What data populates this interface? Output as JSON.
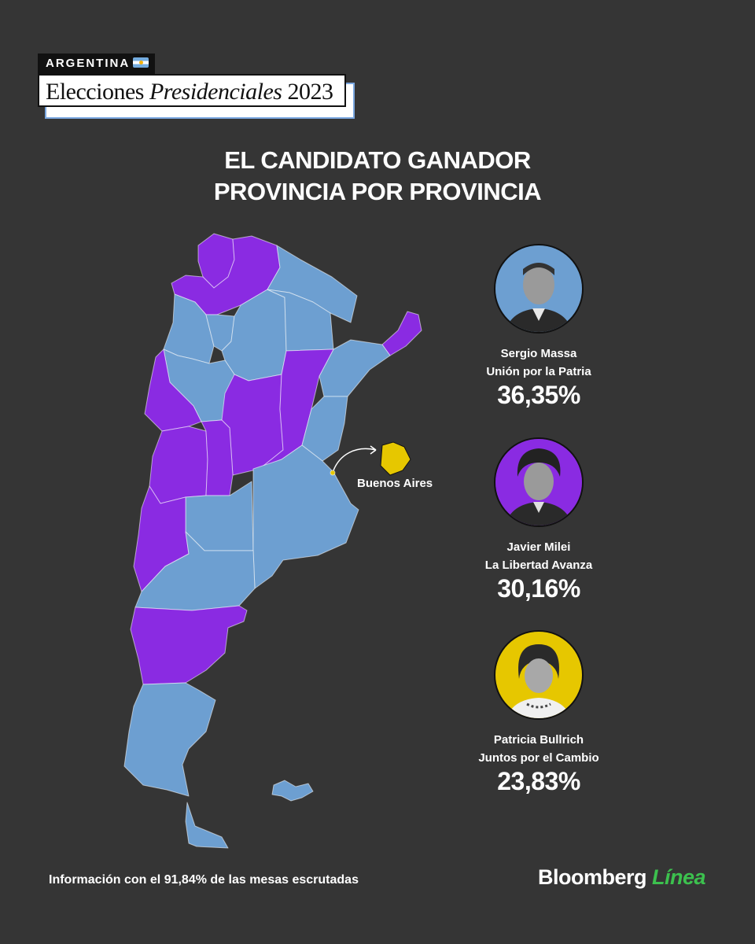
{
  "header": {
    "tag": "ARGENTINA",
    "title_part1": "Elecciones",
    "title_part2": "Presidenciales",
    "title_part3": "2023"
  },
  "headline": {
    "line1": "EL CANDIDATO GANADOR",
    "line2": "PROVINCIA POR PROVINCIA"
  },
  "map": {
    "inset_label": "Buenos Aires",
    "colors": {
      "massa": "#6d9fd1",
      "milei": "#8a2be2",
      "bullrich": "#e6c700"
    },
    "winners": {
      "Jujuy": "milei",
      "Salta": "milei",
      "Formosa": "massa",
      "Chaco": "massa",
      "Misiones": "milei",
      "Catamarca": "massa",
      "Tucumán": "massa",
      "Santiago del Estero": "massa",
      "Corrientes": "massa",
      "La Rioja": "massa",
      "San Juan": "milei",
      "Córdoba": "milei",
      "Santa Fe": "milei",
      "Entre Ríos": "massa",
      "Mendoza": "milei",
      "San Luis": "milei",
      "La Pampa": "massa",
      "Buenos Aires": "massa",
      "CABA": "bullrich",
      "Neuquén": "milei",
      "Río Negro": "massa",
      "Chubut": "milei",
      "Santa Cruz": "massa",
      "Tierra del Fuego": "massa"
    }
  },
  "candidates": [
    {
      "name": "Sergio Massa",
      "party": "Unión por la Patria",
      "pct": "36,35%",
      "color": "#6d9fd1"
    },
    {
      "name": "Javier Milei",
      "party": "La Libertad Avanza",
      "pct": "30,16%",
      "color": "#8a2be2"
    },
    {
      "name": "Patricia Bullrich",
      "party": "Juntos por el Cambio",
      "pct": "23,83%",
      "color": "#e6c700"
    }
  ],
  "footer": {
    "note": "Información con el 91,84% de las mesas escrutadas",
    "brand_a": "Bloomberg",
    "brand_b": "Línea"
  }
}
